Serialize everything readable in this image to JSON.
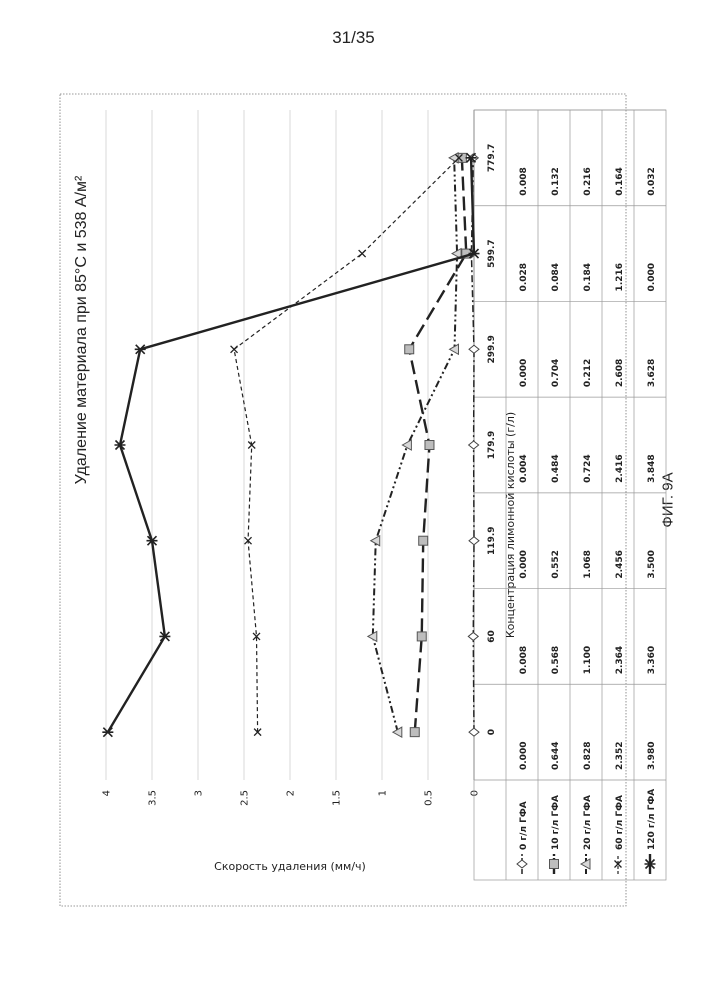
{
  "page": {
    "number": "31/35",
    "caption": "ФИГ. 9А"
  },
  "chart_data": {
    "type": "line",
    "title": "Удаление материала при 85°С и 538 А/м²",
    "xlabel": "Концентрация лимонной кислоты (г/л)",
    "ylabel": "Скорость удаления (мм/ч)",
    "ylim": [
      0,
      4
    ],
    "yticks": [
      "0",
      "0.5",
      "1",
      "1.5",
      "2",
      "2.5",
      "3",
      "3.5",
      "4"
    ],
    "grid": true,
    "legend": "data-table",
    "categories": [
      "0",
      "60",
      "119.9",
      "179.9",
      "299.9",
      "599.7",
      "779.7"
    ],
    "series": [
      {
        "name": "0 г/л ГФА",
        "values": [
          0.0,
          0.008,
          0.0,
          0.004,
          0.0,
          0.028,
          0.008
        ],
        "values_text": [
          "0.000",
          "0.008",
          "0.000",
          "0.004",
          "0.000",
          "0.028",
          "0.008"
        ],
        "line_style": "dash-dot",
        "marker": "diamond",
        "color": "#222222"
      },
      {
        "name": "10 г/л ГФА",
        "values": [
          0.644,
          0.568,
          0.552,
          0.484,
          0.704,
          0.084,
          0.132
        ],
        "values_text": [
          "0.644",
          "0.568",
          "0.552",
          "0.484",
          "0.704",
          "0.084",
          "0.132"
        ],
        "line_style": "long-dash",
        "marker": "square",
        "color": "#222222"
      },
      {
        "name": "20 г/л ГФА",
        "values": [
          0.828,
          1.1,
          1.068,
          0.724,
          0.212,
          0.184,
          0.216
        ],
        "values_text": [
          "0.828",
          "1.100",
          "1.068",
          "0.724",
          "0.212",
          "0.184",
          "0.216"
        ],
        "line_style": "dash-dot-dot",
        "marker": "triangle",
        "color": "#222222"
      },
      {
        "name": "60 г/л ГФА",
        "values": [
          2.352,
          2.364,
          2.456,
          2.416,
          2.608,
          1.216,
          0.164
        ],
        "values_text": [
          "2.352",
          "2.364",
          "2.456",
          "2.416",
          "2.608",
          "1.216",
          "0.164"
        ],
        "line_style": "short-dash",
        "marker": "x",
        "color": "#222222"
      },
      {
        "name": "120 г/л ГФА",
        "values": [
          3.98,
          3.36,
          3.5,
          3.848,
          3.628,
          0.0,
          0.032
        ],
        "values_text": [
          "3.980",
          "3.360",
          "3.500",
          "3.848",
          "3.628",
          "0.000",
          "0.032"
        ],
        "line_style": "solid",
        "marker": "star",
        "color": "#222222"
      }
    ]
  }
}
